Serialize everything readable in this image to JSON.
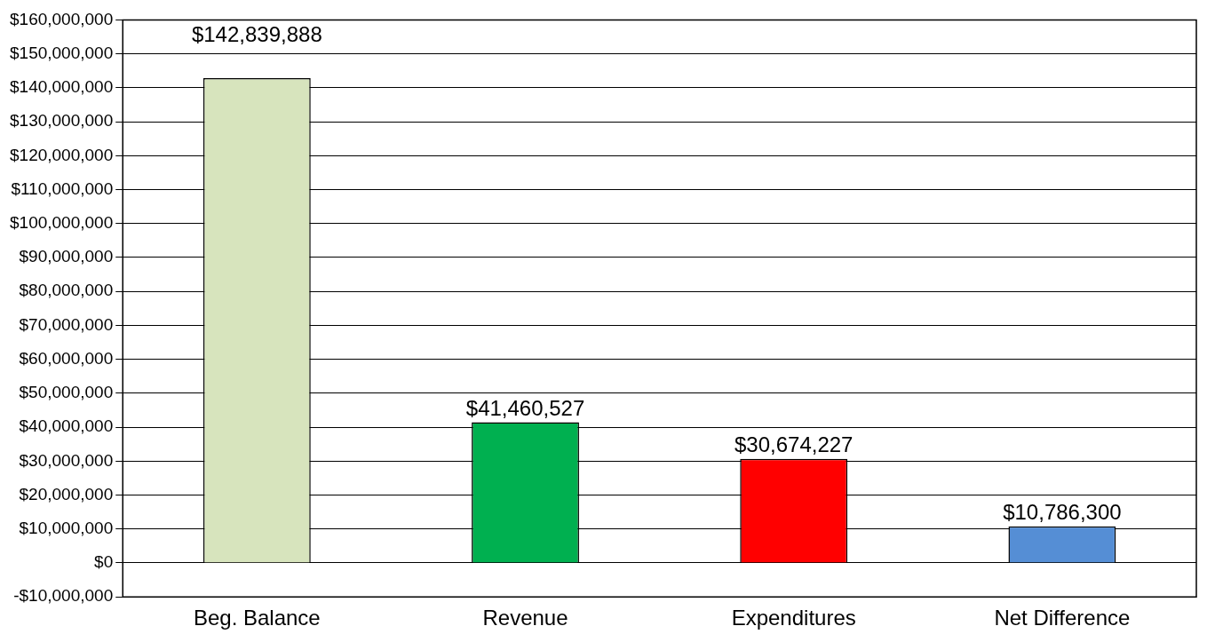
{
  "chart_data": {
    "type": "bar",
    "categories": [
      "Beg. Balance",
      "Revenue",
      "Expenditures",
      "Net Difference"
    ],
    "values": [
      142839888,
      41460527,
      30674227,
      10786300
    ],
    "colors": [
      "#d7e4bd",
      "#00b050",
      "#ff0000",
      "#558ed5"
    ],
    "value_labels": [
      "$142,839,888",
      "$41,460,527",
      "$30,674,227",
      "$10,786,300"
    ],
    "ylim": [
      -10000000,
      160000000
    ],
    "yticks": [
      {
        "value": -10000000,
        "label": "-$10,000,000"
      },
      {
        "value": 0,
        "label": "$0"
      },
      {
        "value": 10000000,
        "label": "$10,000,000"
      },
      {
        "value": 20000000,
        "label": "$20,000,000"
      },
      {
        "value": 30000000,
        "label": "$30,000,000"
      },
      {
        "value": 40000000,
        "label": "$40,000,000"
      },
      {
        "value": 50000000,
        "label": "$50,000,000"
      },
      {
        "value": 60000000,
        "label": "$60,000,000"
      },
      {
        "value": 70000000,
        "label": "$70,000,000"
      },
      {
        "value": 80000000,
        "label": "$80,000,000"
      },
      {
        "value": 90000000,
        "label": "$90,000,000"
      },
      {
        "value": 100000000,
        "label": "$100,000,000"
      },
      {
        "value": 110000000,
        "label": "$110,000,000"
      },
      {
        "value": 120000000,
        "label": "$120,000,000"
      },
      {
        "value": 130000000,
        "label": "$130,000,000"
      },
      {
        "value": 140000000,
        "label": "$140,000,000"
      },
      {
        "value": 150000000,
        "label": "$150,000,000"
      },
      {
        "value": 160000000,
        "label": "$160,000,000"
      }
    ],
    "grid": "y"
  }
}
